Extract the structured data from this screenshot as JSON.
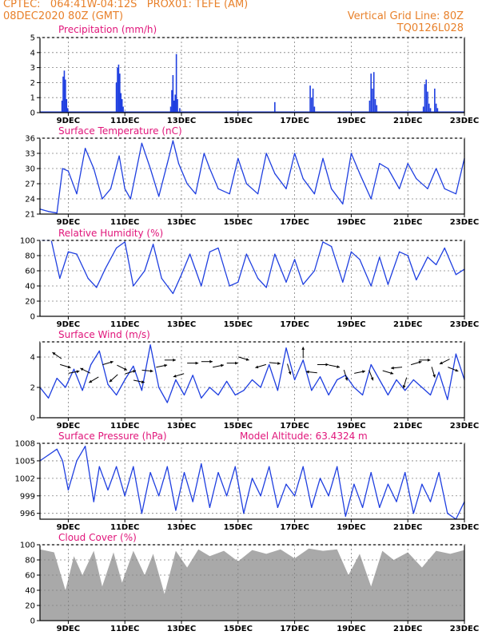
{
  "header": {
    "line1_left": "CPTEC:   064:41W-04:12S   PROX01: TEFE (AM)",
    "line2_left": "08DEC2020 80Z (GMT)",
    "line2_right": "Vertical Grid Line: 80Z",
    "line3_right": "TQ0126L028"
  },
  "x_labels": [
    "9DEC",
    "11DEC",
    "13DEC",
    "15DEC",
    "17DEC",
    "19DEC",
    "21DEC",
    "23DEC"
  ],
  "colors": {
    "header": "#e8812b",
    "title": "#e0157a",
    "line": "#1f3fe0",
    "cloud": "#a9a9a9",
    "grid": "#808080"
  },
  "chart_data": [
    {
      "type": "bar",
      "title": "Precipitation (mm/h)",
      "ylim": [
        0,
        5
      ],
      "yticks": [
        "0",
        "1",
        "2",
        "3",
        "4",
        "5"
      ],
      "x_range_days": [
        8.0,
        23.0
      ],
      "x": [
        8.78,
        8.82,
        8.86,
        8.9,
        8.94,
        8.98,
        10.7,
        10.74,
        10.78,
        10.82,
        10.86,
        10.9,
        10.94,
        12.62,
        12.66,
        12.7,
        12.74,
        12.78,
        12.82,
        12.86,
        12.94,
        16.3,
        17.55,
        17.6,
        17.65,
        17.7,
        19.65,
        19.7,
        19.75,
        19.8,
        19.85,
        19.9,
        21.55,
        21.6,
        21.65,
        21.7,
        21.75,
        21.8,
        21.95,
        22.0,
        22.05
      ],
      "values": [
        0.8,
        2.4,
        2.8,
        2.2,
        0.9,
        0.3,
        2.0,
        3.0,
        3.2,
        2.6,
        1.3,
        0.9,
        0.4,
        0.4,
        1.5,
        2.5,
        0.8,
        1.2,
        3.9,
        0.9,
        0.3,
        0.7,
        1.8,
        1.0,
        1.6,
        0.4,
        0.8,
        2.6,
        1.6,
        2.7,
        0.9,
        0.5,
        0.4,
        1.9,
        2.2,
        1.4,
        0.6,
        0.3,
        1.6,
        0.6,
        0.3
      ]
    },
    {
      "type": "line",
      "title": "Surface Temperature (nC)",
      "ylim": [
        21,
        36
      ],
      "yticks": [
        "21",
        "24",
        "27",
        "30",
        "33",
        "36"
      ],
      "x": [
        8.0,
        8.3,
        8.6,
        8.8,
        9.0,
        9.3,
        9.6,
        9.9,
        10.2,
        10.5,
        10.8,
        11.0,
        11.2,
        11.6,
        11.9,
        12.2,
        12.5,
        12.7,
        12.9,
        13.2,
        13.5,
        13.8,
        14.0,
        14.3,
        14.7,
        15.0,
        15.3,
        15.7,
        16.0,
        16.3,
        16.7,
        17.0,
        17.3,
        17.7,
        18.0,
        18.3,
        18.7,
        19.0,
        19.3,
        19.7,
        20.0,
        20.3,
        20.7,
        21.0,
        21.3,
        21.7,
        22.0,
        22.3,
        22.7,
        23.0
      ],
      "values": [
        22.0,
        21.5,
        21.2,
        30.0,
        29.5,
        25.0,
        34.0,
        30.0,
        24.0,
        26.0,
        32.5,
        26.0,
        24.0,
        35.0,
        30.0,
        24.5,
        31.0,
        35.5,
        31.0,
        27.0,
        25.0,
        33.0,
        30.0,
        26.0,
        25.0,
        32.0,
        27.0,
        25.0,
        33.0,
        29.0,
        26.0,
        33.0,
        28.0,
        25.0,
        32.0,
        26.0,
        23.0,
        33.0,
        29.0,
        24.0,
        31.0,
        30.0,
        26.0,
        31.0,
        28.0,
        26.0,
        30.0,
        26.0,
        25.0,
        32.0
      ]
    },
    {
      "type": "line",
      "title": "Relative Humidity (%)",
      "ylim": [
        0,
        100
      ],
      "yticks": [
        "0",
        "20",
        "40",
        "60",
        "80",
        "100"
      ],
      "x": [
        8.0,
        8.4,
        8.7,
        9.0,
        9.3,
        9.7,
        10.0,
        10.3,
        10.7,
        11.0,
        11.3,
        11.7,
        12.0,
        12.3,
        12.7,
        13.0,
        13.3,
        13.7,
        14.0,
        14.3,
        14.7,
        15.0,
        15.3,
        15.7,
        16.0,
        16.3,
        16.7,
        17.0,
        17.3,
        17.7,
        18.0,
        18.3,
        18.7,
        19.0,
        19.3,
        19.7,
        20.0,
        20.3,
        20.7,
        21.0,
        21.3,
        21.7,
        22.0,
        22.3,
        22.7,
        23.0
      ],
      "values": [
        100,
        100,
        50,
        85,
        82,
        50,
        38,
        62,
        90,
        98,
        40,
        60,
        95,
        50,
        30,
        55,
        82,
        40,
        85,
        90,
        40,
        45,
        82,
        50,
        38,
        82,
        45,
        75,
        42,
        60,
        98,
        92,
        45,
        85,
        75,
        40,
        78,
        42,
        85,
        80,
        48,
        78,
        68,
        90,
        55,
        62
      ]
    },
    {
      "type": "line",
      "title": "Surface Wind (m/s)",
      "ylim": [
        0,
        5
      ],
      "yticks": [
        "0",
        "2",
        "4"
      ],
      "x": [
        8.0,
        8.3,
        8.6,
        8.9,
        9.2,
        9.5,
        9.8,
        10.1,
        10.4,
        10.7,
        11.0,
        11.3,
        11.6,
        11.9,
        12.2,
        12.5,
        12.8,
        13.1,
        13.4,
        13.7,
        14.0,
        14.3,
        14.6,
        14.9,
        15.2,
        15.5,
        15.8,
        16.1,
        16.4,
        16.7,
        17.0,
        17.3,
        17.6,
        17.9,
        18.2,
        18.5,
        18.8,
        19.1,
        19.4,
        19.7,
        20.0,
        20.3,
        20.6,
        20.9,
        21.2,
        21.5,
        21.8,
        22.1,
        22.4,
        22.7,
        23.0
      ],
      "values": [
        2.0,
        1.3,
        2.6,
        2.0,
        3.2,
        1.8,
        3.5,
        4.4,
        2.2,
        1.5,
        2.5,
        3.4,
        1.8,
        4.8,
        2.0,
        1.0,
        2.5,
        1.5,
        2.8,
        1.3,
        2.0,
        1.5,
        2.4,
        1.5,
        1.8,
        2.5,
        2.0,
        3.5,
        1.8,
        4.6,
        2.5,
        3.8,
        1.8,
        2.7,
        1.5,
        2.5,
        2.8,
        2.0,
        1.5,
        3.5,
        2.5,
        1.5,
        2.5,
        1.8,
        2.5,
        2.0,
        1.5,
        3.0,
        1.2,
        4.2,
        2.5
      ]
    },
    {
      "type": "line",
      "title": "Surface Pressure (hPa)",
      "annotation": "Model Altitude: 63.4324 m",
      "ylim": [
        995,
        1008
      ],
      "yticks": [
        "996",
        "999",
        "1002",
        "1005",
        "1008"
      ],
      "x": [
        8.0,
        8.3,
        8.6,
        8.8,
        9.0,
        9.3,
        9.6,
        9.9,
        10.1,
        10.4,
        10.7,
        11.0,
        11.3,
        11.6,
        11.9,
        12.2,
        12.5,
        12.8,
        13.1,
        13.4,
        13.7,
        14.0,
        14.3,
        14.6,
        14.9,
        15.2,
        15.5,
        15.8,
        16.1,
        16.4,
        16.7,
        17.0,
        17.3,
        17.6,
        17.9,
        18.2,
        18.5,
        18.8,
        19.1,
        19.4,
        19.7,
        20.0,
        20.3,
        20.6,
        20.9,
        21.2,
        21.5,
        21.8,
        22.1,
        22.4,
        22.7,
        23.0
      ],
      "values": [
        1005.0,
        1006.0,
        1007.0,
        1005.0,
        1000.0,
        1005.0,
        1007.5,
        998.0,
        1004.0,
        1000.0,
        1004.0,
        999.0,
        1004.0,
        996.0,
        1003.0,
        999.0,
        1004.0,
        996.5,
        1003.0,
        998.0,
        1004.5,
        997.0,
        1003.0,
        999.0,
        1004.0,
        996.0,
        1002.0,
        999.0,
        1004.0,
        997.0,
        1001.0,
        999.0,
        1004.0,
        997.0,
        1002.0,
        999.0,
        1004.0,
        995.5,
        1001.0,
        997.0,
        1003.0,
        997.0,
        1001.0,
        998.0,
        1003.0,
        996.0,
        1001.0,
        998.0,
        1003.0,
        996.0,
        995.0,
        998.0
      ]
    },
    {
      "type": "area",
      "title": "Cloud Cover (%)",
      "ylim": [
        0,
        100
      ],
      "yticks": [
        "0",
        "20",
        "40",
        "60",
        "80",
        "100"
      ],
      "x": [
        8.0,
        8.5,
        8.9,
        9.2,
        9.5,
        9.9,
        10.2,
        10.6,
        10.9,
        11.3,
        11.7,
        12.0,
        12.4,
        12.8,
        13.2,
        13.6,
        14.0,
        14.5,
        15.0,
        15.5,
        16.0,
        16.5,
        17.0,
        17.5,
        18.0,
        18.5,
        18.9,
        19.3,
        19.7,
        20.1,
        20.5,
        21.0,
        21.5,
        22.0,
        22.5,
        23.0
      ],
      "values": [
        94,
        90,
        40,
        85,
        60,
        92,
        45,
        90,
        50,
        92,
        60,
        88,
        35,
        92,
        70,
        94,
        85,
        92,
        78,
        93,
        88,
        94,
        82,
        95,
        92,
        94,
        60,
        88,
        45,
        92,
        80,
        90,
        70,
        92,
        88,
        93
      ]
    }
  ]
}
